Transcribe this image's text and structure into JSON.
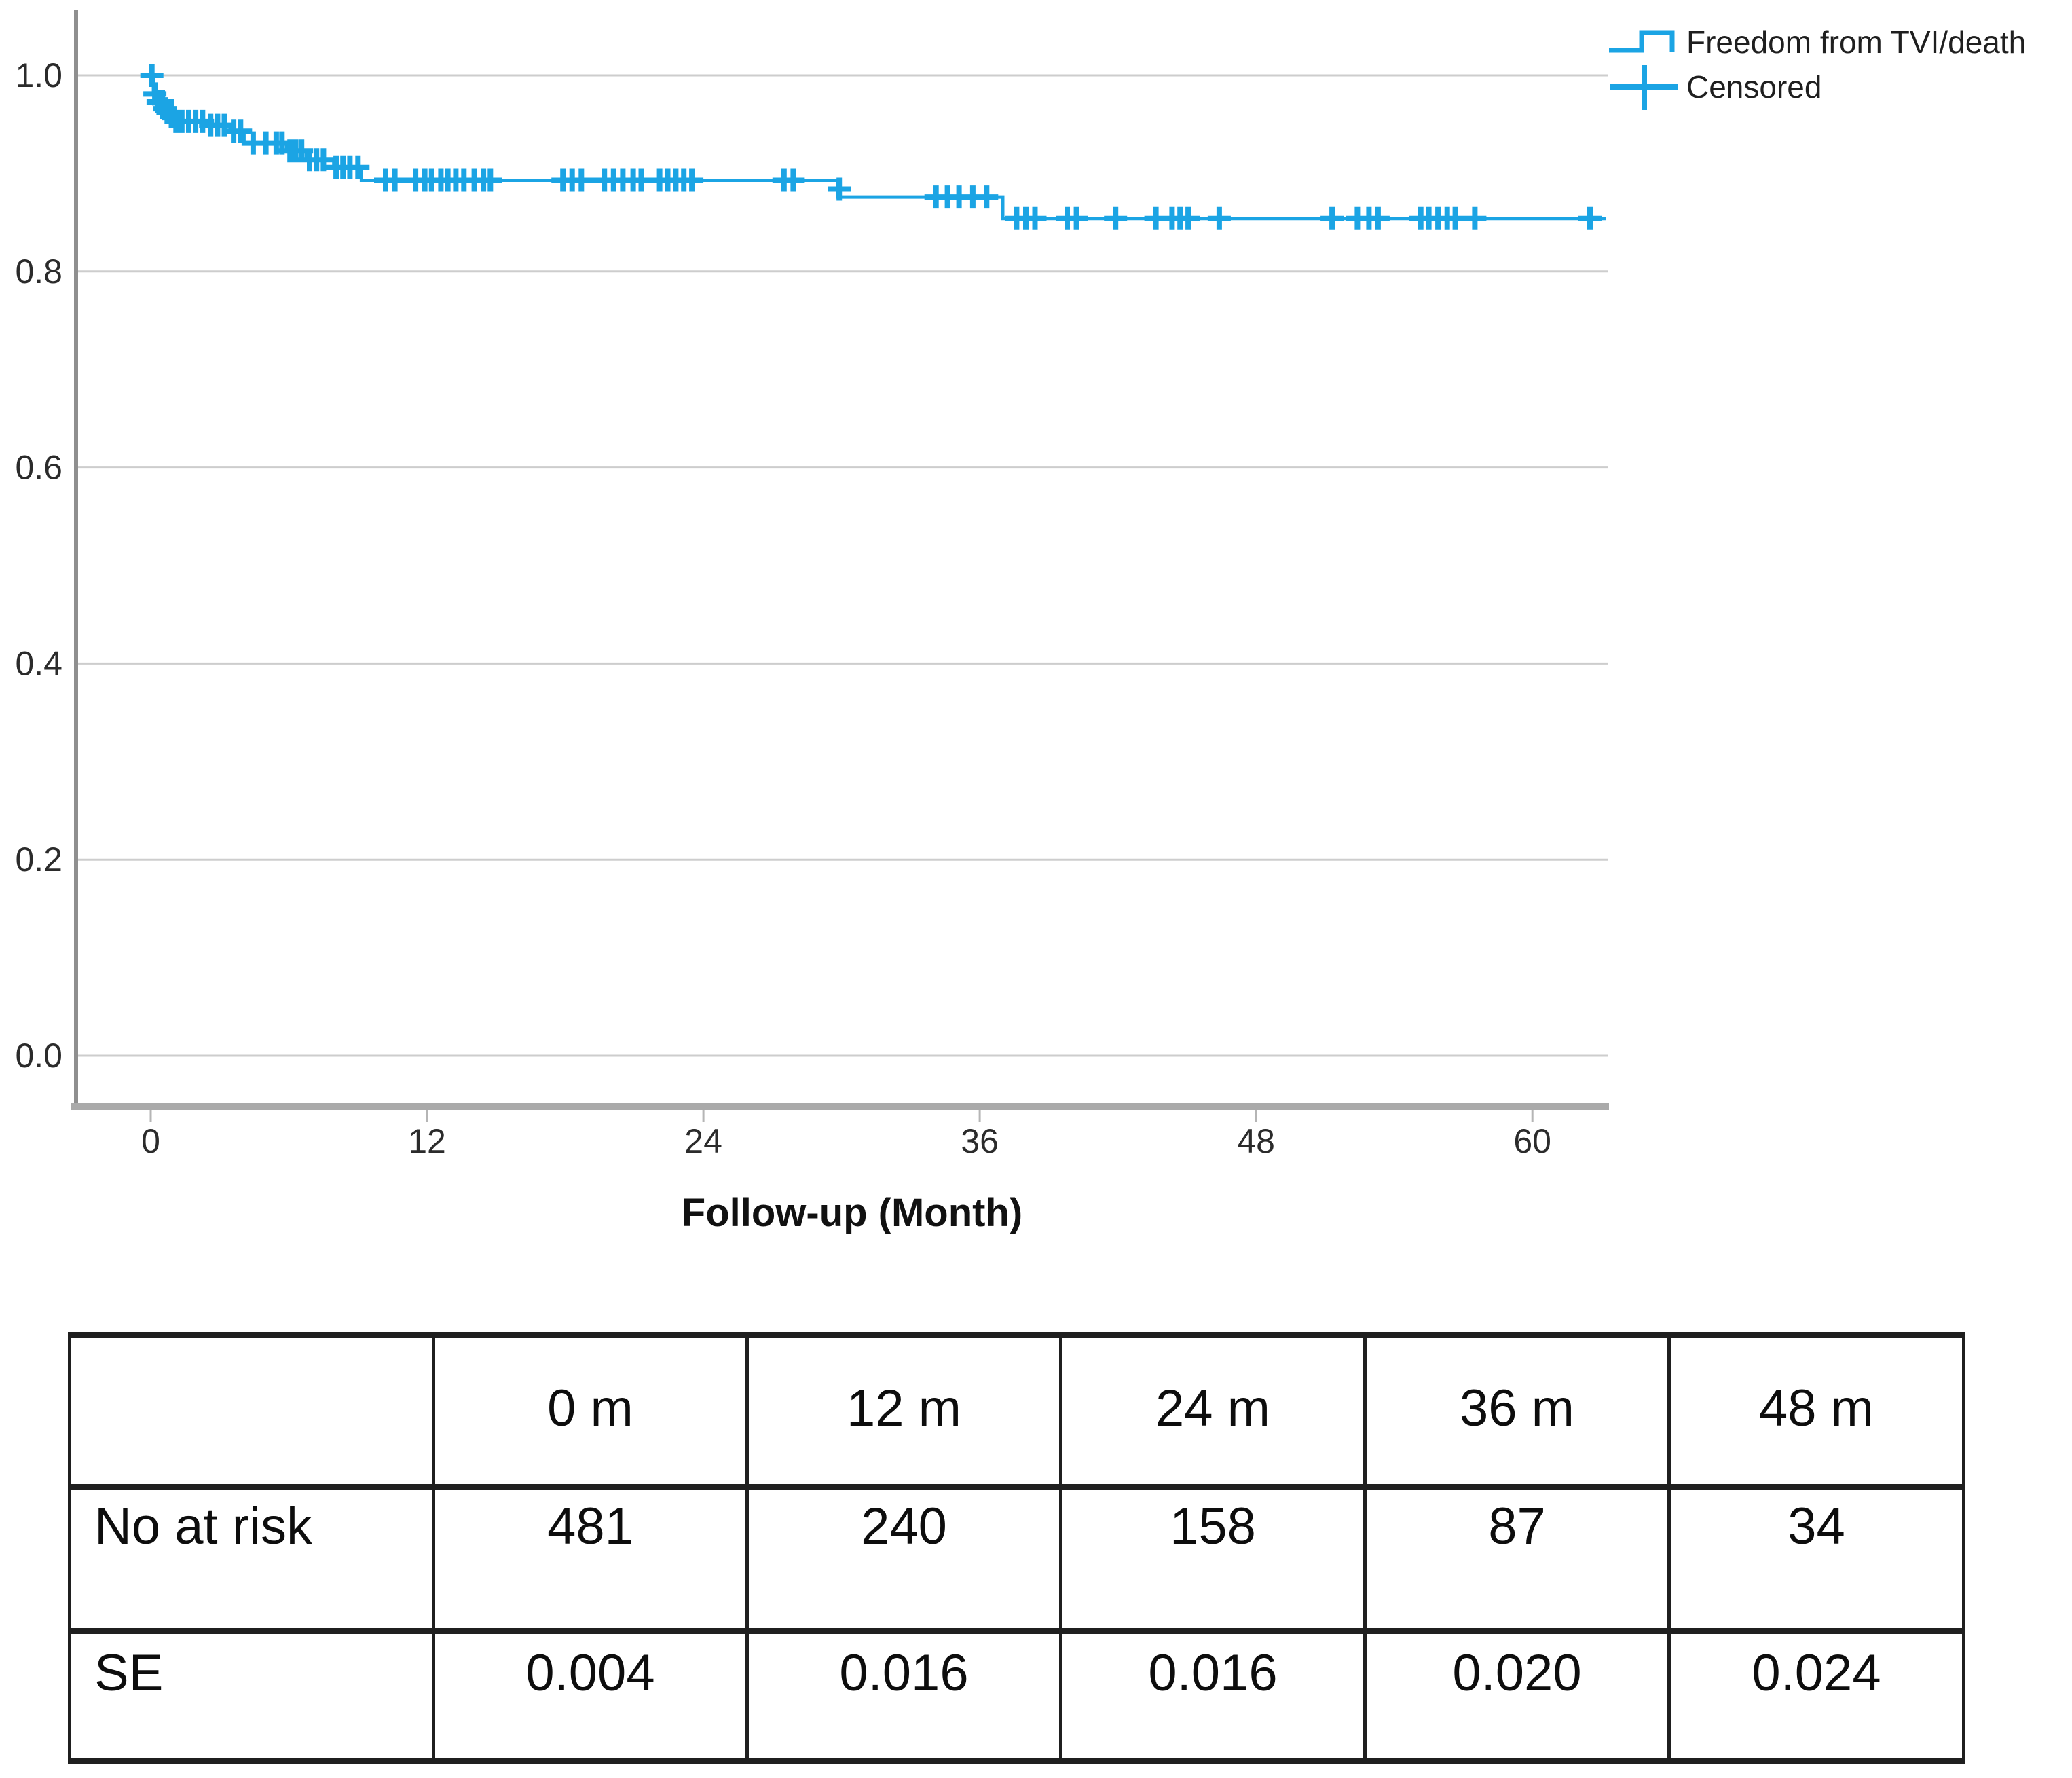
{
  "chart": {
    "legend": [
      {
        "label": "Freedom from TVI/death",
        "symbol": "step-line"
      },
      {
        "label": "Censored",
        "symbol": "plus"
      }
    ],
    "x_axis": {
      "title": "Follow-up (Month)",
      "ticks": [
        "0",
        "12",
        "24",
        "36",
        "48",
        "60"
      ]
    },
    "y_axis": {
      "ticks": [
        "1.0",
        "0.8",
        "0.6",
        "0.4",
        "0.2",
        "0.0"
      ]
    }
  },
  "chart_data": {
    "type": "line",
    "subtype": "kaplan-meier-step",
    "title": "",
    "xlabel": "Follow-up (Month)",
    "ylabel": "",
    "xlim": [
      -3.2,
      63.3
    ],
    "ylim": [
      -0.05,
      1.06
    ],
    "grid": true,
    "legend_position": "top-right",
    "series": [
      {
        "name": "Freedom from TVI/death",
        "steps": [
          [
            0,
            1.0
          ],
          [
            0.12,
            0.981
          ],
          [
            0.3,
            0.973
          ],
          [
            0.55,
            0.966
          ],
          [
            0.78,
            0.958
          ],
          [
            1.0,
            0.953
          ],
          [
            2.4,
            0.949
          ],
          [
            3.45,
            0.943
          ],
          [
            4.05,
            0.931
          ],
          [
            5.9,
            0.923
          ],
          [
            6.75,
            0.914
          ],
          [
            7.95,
            0.906
          ],
          [
            9.15,
            0.893
          ],
          [
            29.85,
            0.876
          ],
          [
            37.0,
            0.854
          ]
        ],
        "end_x": 63.2
      }
    ],
    "censored": [
      [
        0.05,
        1.0
      ],
      [
        0.18,
        0.981
      ],
      [
        0.32,
        0.973
      ],
      [
        0.5,
        0.973
      ],
      [
        0.62,
        0.966
      ],
      [
        0.75,
        0.962
      ],
      [
        0.9,
        0.958
      ],
      [
        1.1,
        0.953
      ],
      [
        1.35,
        0.953
      ],
      [
        1.65,
        0.953
      ],
      [
        1.95,
        0.953
      ],
      [
        2.25,
        0.953
      ],
      [
        2.6,
        0.949
      ],
      [
        2.9,
        0.949
      ],
      [
        3.2,
        0.949
      ],
      [
        3.6,
        0.943
      ],
      [
        3.9,
        0.943
      ],
      [
        4.45,
        0.931
      ],
      [
        5.0,
        0.931
      ],
      [
        5.45,
        0.931
      ],
      [
        5.7,
        0.931
      ],
      [
        6.05,
        0.923
      ],
      [
        6.3,
        0.923
      ],
      [
        6.55,
        0.923
      ],
      [
        6.9,
        0.914
      ],
      [
        7.2,
        0.914
      ],
      [
        7.5,
        0.914
      ],
      [
        8.05,
        0.906
      ],
      [
        8.35,
        0.906
      ],
      [
        8.65,
        0.906
      ],
      [
        9.0,
        0.906
      ],
      [
        10.2,
        0.893
      ],
      [
        10.6,
        0.893
      ],
      [
        11.5,
        0.893
      ],
      [
        11.9,
        0.893
      ],
      [
        12.2,
        0.893
      ],
      [
        12.6,
        0.893
      ],
      [
        12.9,
        0.893
      ],
      [
        13.25,
        0.893
      ],
      [
        13.6,
        0.893
      ],
      [
        14.05,
        0.893
      ],
      [
        14.45,
        0.893
      ],
      [
        14.75,
        0.893
      ],
      [
        17.9,
        0.893
      ],
      [
        18.3,
        0.893
      ],
      [
        18.7,
        0.893
      ],
      [
        19.7,
        0.893
      ],
      [
        20.1,
        0.893
      ],
      [
        20.5,
        0.893
      ],
      [
        20.95,
        0.893
      ],
      [
        21.3,
        0.893
      ],
      [
        22.1,
        0.893
      ],
      [
        22.45,
        0.893
      ],
      [
        22.8,
        0.893
      ],
      [
        23.15,
        0.893
      ],
      [
        23.5,
        0.893
      ],
      [
        27.5,
        0.893
      ],
      [
        27.9,
        0.893
      ],
      [
        29.9,
        0.884
      ],
      [
        34.1,
        0.876
      ],
      [
        34.6,
        0.876
      ],
      [
        35.1,
        0.876
      ],
      [
        35.7,
        0.876
      ],
      [
        36.3,
        0.876
      ],
      [
        37.6,
        0.854
      ],
      [
        38.0,
        0.854
      ],
      [
        38.4,
        0.854
      ],
      [
        39.8,
        0.854
      ],
      [
        40.2,
        0.854
      ],
      [
        41.9,
        0.854
      ],
      [
        43.65,
        0.854
      ],
      [
        44.35,
        0.854
      ],
      [
        44.7,
        0.854
      ],
      [
        45.05,
        0.854
      ],
      [
        46.4,
        0.854
      ],
      [
        51.3,
        0.854
      ],
      [
        52.4,
        0.854
      ],
      [
        52.9,
        0.854
      ],
      [
        53.3,
        0.854
      ],
      [
        55.15,
        0.854
      ],
      [
        55.5,
        0.854
      ],
      [
        55.9,
        0.854
      ],
      [
        56.3,
        0.854
      ],
      [
        56.65,
        0.854
      ],
      [
        57.5,
        0.854
      ],
      [
        62.5,
        0.854
      ]
    ]
  },
  "colors": {
    "curve": "#1BA4E4",
    "grid": "#cdcdcd",
    "axis_left": "#8f8f8f",
    "axis_bottom": "#aaaaaa",
    "tick": "#b5b5b5",
    "text": "#2b2b2b"
  },
  "table": {
    "headers": [
      "",
      "0 m",
      "12 m",
      "24 m",
      "36 m",
      "48 m"
    ],
    "rows": [
      {
        "label": "No at risk",
        "values": [
          "481",
          "240",
          "158",
          "87",
          "34"
        ]
      },
      {
        "label": "SE",
        "values": [
          "0.004",
          "0.016",
          "0.016",
          "0.020",
          "0.024"
        ]
      }
    ]
  }
}
